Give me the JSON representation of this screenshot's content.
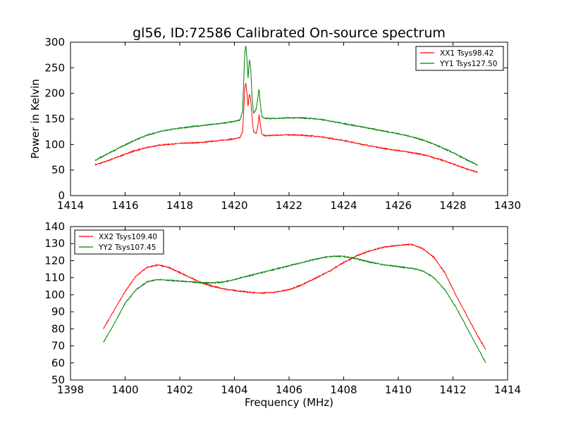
{
  "figure": {
    "title": "gl56, ID:72586 Calibrated On-source spectrum",
    "xlabel": "Frequency (MHz)"
  },
  "chart_data": [
    {
      "type": "line",
      "title": "gl56, ID:72586 Calibrated On-source spectrum",
      "xlabel": "",
      "ylabel": "Power in Kelvin",
      "xlim": [
        1414,
        1430
      ],
      "ylim": [
        0,
        300
      ],
      "xticks": [
        "1414",
        "1416",
        "1418",
        "1420",
        "1422",
        "1424",
        "1426",
        "1428",
        "1430"
      ],
      "yticks": [
        "0",
        "50",
        "100",
        "150",
        "200",
        "250",
        "300"
      ],
      "grid": false,
      "legend_position": "top-right",
      "series": [
        {
          "name": "XX1 Tsys98.42",
          "color": "#ff0000",
          "x": [
            1414.9,
            1415.3,
            1415.8,
            1416.3,
            1416.8,
            1417.3,
            1418.0,
            1418.8,
            1419.5,
            1420.0,
            1420.2,
            1420.3,
            1420.38,
            1420.42,
            1420.46,
            1420.5,
            1420.55,
            1420.6,
            1420.65,
            1420.7,
            1420.8,
            1420.87,
            1420.9,
            1420.95,
            1421.0,
            1421.1,
            1421.5,
            1422.0,
            1422.5,
            1423.0,
            1423.5,
            1424.0,
            1424.5,
            1425.0,
            1425.5,
            1426.0,
            1426.5,
            1427.0,
            1427.5,
            1428.0,
            1428.5,
            1428.9
          ],
          "y": [
            60,
            67,
            77,
            87,
            94,
            99,
            102,
            104,
            108,
            111,
            113,
            125,
            210,
            220,
            200,
            175,
            200,
            185,
            150,
            125,
            122,
            140,
            158,
            140,
            120,
            117,
            118,
            119,
            118,
            116,
            112,
            108,
            102,
            97,
            92,
            88,
            84,
            79,
            71,
            62,
            52,
            46
          ]
        },
        {
          "name": "YY1 Tsys127.50",
          "color": "#008000",
          "x": [
            1414.9,
            1415.3,
            1415.8,
            1416.3,
            1416.8,
            1417.3,
            1418.0,
            1418.8,
            1419.5,
            1420.0,
            1420.2,
            1420.3,
            1420.38,
            1420.42,
            1420.46,
            1420.5,
            1420.55,
            1420.6,
            1420.65,
            1420.7,
            1420.8,
            1420.87,
            1420.9,
            1420.95,
            1421.0,
            1421.1,
            1421.5,
            1422.0,
            1422.5,
            1423.0,
            1423.5,
            1424.0,
            1424.5,
            1425.0,
            1425.5,
            1426.0,
            1426.5,
            1427.0,
            1427.5,
            1428.0,
            1428.5,
            1428.9
          ],
          "y": [
            69,
            80,
            94,
            107,
            118,
            126,
            132,
            137,
            141,
            145,
            148,
            165,
            280,
            293,
            265,
            230,
            268,
            245,
            190,
            160,
            170,
            195,
            209,
            180,
            155,
            151,
            151,
            152,
            152,
            150,
            146,
            141,
            136,
            131,
            126,
            121,
            115,
            107,
            96,
            84,
            70,
            60
          ]
        }
      ]
    },
    {
      "type": "line",
      "title": "",
      "xlabel": "Frequency (MHz)",
      "ylabel": "",
      "xlim": [
        1398,
        1414
      ],
      "ylim": [
        50,
        140
      ],
      "xticks": [
        "1398",
        "1400",
        "1402",
        "1404",
        "1406",
        "1408",
        "1410",
        "1412",
        "1414"
      ],
      "yticks": [
        "50",
        "60",
        "70",
        "80",
        "90",
        "100",
        "110",
        "120",
        "130",
        "140"
      ],
      "grid": false,
      "legend_position": "top-left",
      "series": [
        {
          "name": "XX2 Tsys109.40",
          "color": "#ff0000",
          "x": [
            1399.2,
            1399.6,
            1400.0,
            1400.4,
            1400.8,
            1401.2,
            1401.6,
            1402.0,
            1402.4,
            1402.8,
            1403.2,
            1403.6,
            1404.0,
            1404.5,
            1405.0,
            1405.5,
            1406.0,
            1406.5,
            1407.0,
            1407.5,
            1408.0,
            1408.5,
            1409.0,
            1409.5,
            1410.0,
            1410.5,
            1410.9,
            1411.3,
            1411.7,
            1412.1,
            1412.5,
            1412.9,
            1413.2
          ],
          "y": [
            80,
            91,
            102,
            111,
            116,
            117.5,
            116,
            113,
            110,
            107,
            105,
            103.5,
            102.5,
            101.5,
            101,
            101.5,
            103,
            106,
            110,
            114,
            119,
            123,
            126,
            128,
            129,
            129.5,
            127,
            122,
            113,
            100,
            88,
            76,
            68
          ]
        },
        {
          "name": "YY2 Tsys107.45",
          "color": "#008000",
          "x": [
            1399.2,
            1399.6,
            1400.0,
            1400.4,
            1400.8,
            1401.2,
            1401.6,
            1402.0,
            1402.4,
            1402.8,
            1403.2,
            1403.6,
            1404.0,
            1404.5,
            1405.0,
            1405.5,
            1406.0,
            1406.5,
            1407.0,
            1407.5,
            1408.0,
            1408.5,
            1409.0,
            1409.5,
            1410.0,
            1410.5,
            1410.9,
            1411.3,
            1411.7,
            1412.1,
            1412.5,
            1412.9,
            1413.2
          ],
          "y": [
            72,
            83,
            95,
            103,
            107.5,
            109,
            108.5,
            108,
            107.5,
            107,
            107,
            107.5,
            109,
            111,
            113,
            115,
            117,
            119,
            121,
            122.5,
            122.5,
            121,
            119,
            117.5,
            116.5,
            115.5,
            114,
            110,
            103,
            93,
            81,
            69,
            60
          ]
        }
      ]
    }
  ]
}
